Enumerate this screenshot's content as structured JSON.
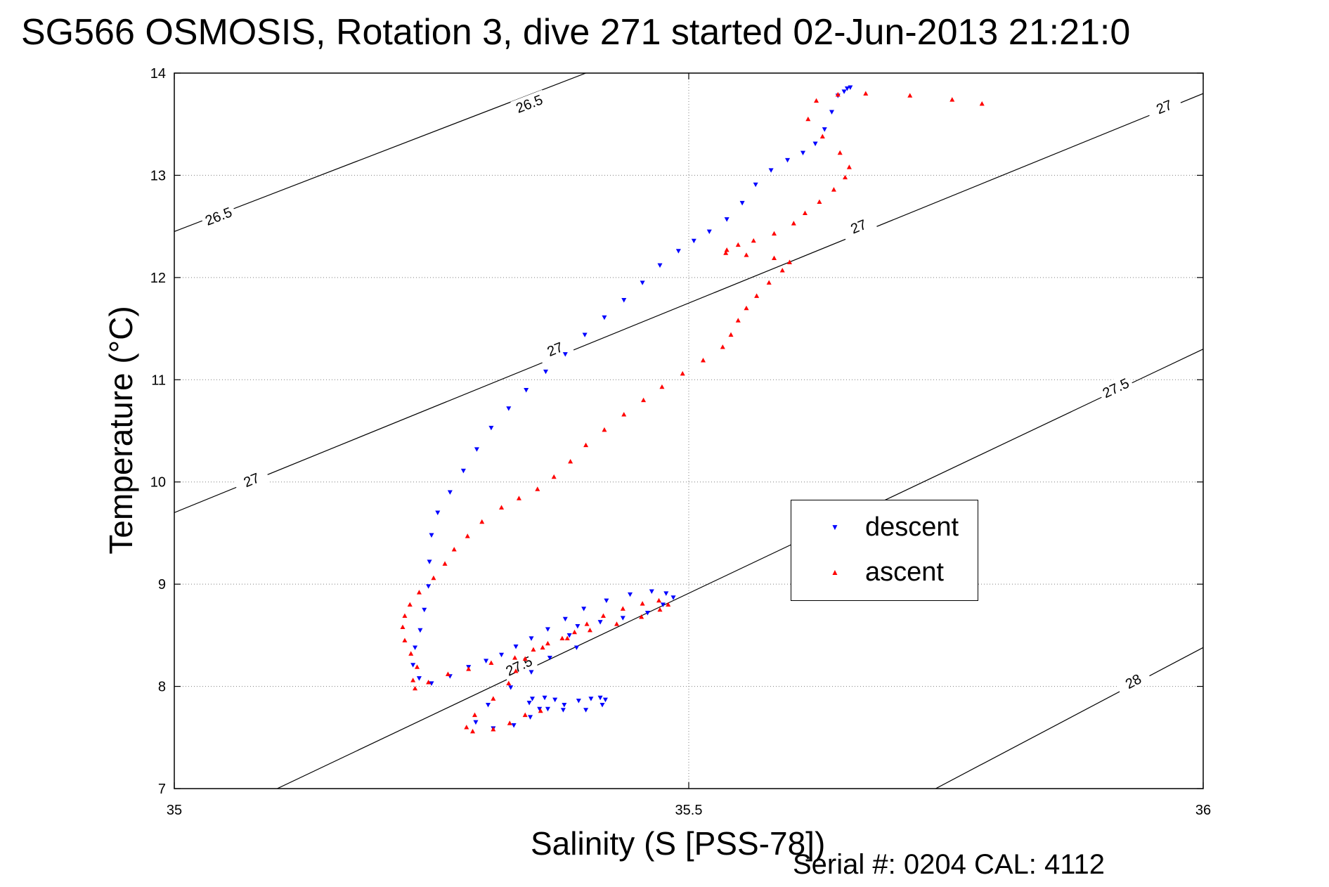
{
  "title": "SG566 OSMOSIS, Rotation 3, dive 271 started 02-Jun-2013 21:21:0",
  "footer": {
    "serial": "Serial #: 0204  CAL: 4112"
  },
  "colors": {
    "descent": "#0000ff",
    "ascent": "#ff0000",
    "axis": "#000000",
    "grid": "#7f7f7f"
  },
  "chart_data": {
    "type": "scatter",
    "title": "SG566 OSMOSIS, Rotation 3, dive 271 started 02-Jun-2013 21:21:0",
    "xlabel": "Salinity (S [PSS-78])",
    "ylabel": "Temperature (°C)",
    "xlim": [
      35,
      36
    ],
    "ylim": [
      7,
      14
    ],
    "xticks": [
      35,
      35.5,
      36
    ],
    "xtick_labels": [
      "35",
      "35.5",
      "36"
    ],
    "yticks": [
      7,
      8,
      9,
      10,
      11,
      12,
      13,
      14
    ],
    "ytick_labels": [
      "7",
      "8",
      "9",
      "10",
      "11",
      "12",
      "13",
      "14"
    ],
    "grid": true,
    "legend_position": "center-right",
    "series": [
      {
        "name": "descent",
        "marker": "triangle-down",
        "color": "#0000ff",
        "x": [
          35.654,
          35.657,
          35.651,
          35.645,
          35.639,
          35.632,
          35.623,
          35.611,
          35.596,
          35.58,
          35.565,
          35.552,
          35.537,
          35.52,
          35.505,
          35.49,
          35.472,
          35.455,
          35.437,
          35.418,
          35.399,
          35.38,
          35.361,
          35.342,
          35.325,
          35.308,
          35.294,
          35.281,
          35.268,
          35.256,
          35.25,
          35.248,
          35.247,
          35.243,
          35.239,
          35.234,
          35.232,
          35.238,
          35.25,
          35.268,
          35.286,
          35.303,
          35.318,
          35.332,
          35.347,
          35.363,
          35.38,
          35.398,
          35.42,
          35.443,
          35.464,
          35.478,
          35.485,
          35.475,
          35.46,
          35.436,
          35.414,
          35.392,
          35.384,
          35.391,
          35.365,
          35.347,
          35.327,
          35.305,
          35.293,
          35.31,
          35.33,
          35.346,
          35.363,
          35.379,
          35.393,
          35.405,
          35.414,
          35.419,
          35.416,
          35.4,
          35.378,
          35.355,
          35.345,
          35.348,
          35.36,
          35.37
        ],
        "y": [
          13.85,
          13.86,
          13.82,
          13.78,
          13.62,
          13.45,
          13.31,
          13.22,
          13.15,
          13.05,
          12.91,
          12.73,
          12.57,
          12.45,
          12.36,
          12.26,
          12.12,
          11.95,
          11.78,
          11.61,
          11.44,
          11.25,
          11.08,
          10.9,
          10.72,
          10.53,
          10.32,
          10.11,
          9.9,
          9.7,
          9.48,
          9.22,
          8.98,
          8.75,
          8.55,
          8.38,
          8.21,
          8.08,
          8.03,
          8.1,
          8.19,
          8.25,
          8.31,
          8.39,
          8.47,
          8.56,
          8.66,
          8.76,
          8.84,
          8.9,
          8.93,
          8.91,
          8.87,
          8.8,
          8.72,
          8.67,
          8.63,
          8.59,
          8.5,
          8.38,
          8.28,
          8.14,
          7.99,
          7.82,
          7.65,
          7.59,
          7.62,
          7.7,
          7.78,
          7.82,
          7.86,
          7.88,
          7.89,
          7.87,
          7.82,
          7.77,
          7.77,
          7.78,
          7.84,
          7.88,
          7.89,
          7.87
        ]
      },
      {
        "name": "ascent",
        "marker": "triangle-up",
        "color": "#ff0000",
        "x": [
          35.785,
          35.756,
          35.715,
          35.672,
          35.645,
          35.624,
          35.616,
          35.63,
          35.647,
          35.656,
          35.652,
          35.641,
          35.627,
          35.613,
          35.602,
          35.583,
          35.563,
          35.548,
          35.537,
          35.536,
          35.556,
          35.583,
          35.598,
          35.591,
          35.578,
          35.566,
          35.556,
          35.548,
          35.541,
          35.533,
          35.514,
          35.494,
          35.474,
          35.456,
          35.437,
          35.418,
          35.4,
          35.385,
          35.369,
          35.353,
          35.335,
          35.318,
          35.299,
          35.285,
          35.272,
          35.263,
          35.252,
          35.238,
          35.229,
          35.224,
          35.222,
          35.224,
          35.23,
          35.236,
          35.232,
          35.234,
          35.247,
          35.266,
          35.286,
          35.308,
          35.331,
          35.349,
          35.363,
          35.377,
          35.389,
          35.401,
          35.417,
          35.436,
          35.455,
          35.471,
          35.48,
          35.472,
          35.454,
          35.43,
          35.404,
          35.382,
          35.358,
          35.341,
          35.332,
          35.325,
          35.31,
          35.292,
          35.284,
          35.29,
          35.31,
          35.326,
          35.341,
          35.356
        ],
        "y": [
          13.7,
          13.74,
          13.78,
          13.8,
          13.79,
          13.73,
          13.55,
          13.38,
          13.22,
          13.08,
          12.98,
          12.86,
          12.74,
          12.63,
          12.53,
          12.43,
          12.36,
          12.32,
          12.27,
          12.24,
          12.22,
          12.19,
          12.15,
          12.07,
          11.95,
          11.82,
          11.7,
          11.58,
          11.44,
          11.32,
          11.19,
          11.06,
          10.93,
          10.8,
          10.66,
          10.51,
          10.36,
          10.2,
          10.05,
          9.93,
          9.84,
          9.75,
          9.61,
          9.47,
          9.34,
          9.2,
          9.06,
          8.92,
          8.8,
          8.69,
          8.58,
          8.45,
          8.32,
          8.19,
          8.06,
          7.98,
          8.04,
          8.12,
          8.17,
          8.23,
          8.28,
          8.36,
          8.42,
          8.47,
          8.53,
          8.61,
          8.69,
          8.76,
          8.81,
          8.84,
          8.8,
          8.75,
          8.68,
          8.61,
          8.55,
          8.47,
          8.38,
          8.27,
          8.15,
          8.03,
          7.88,
          7.72,
          7.6,
          7.56,
          7.58,
          7.64,
          7.72,
          7.76
        ]
      }
    ],
    "contours": [
      {
        "level": "26.5",
        "x0": 35,
        "y0": 12.45,
        "x1": 35.4,
        "y1": 14.0,
        "labels": [
          {
            "text": "26.5",
            "x": 35.043,
            "y": 12.6
          },
          {
            "text": "26.5",
            "x": 35.345,
            "y": 13.7
          }
        ]
      },
      {
        "level": "27",
        "x0": 35,
        "y0": 9.7,
        "x1": 36,
        "y1": 13.8,
        "labels": [
          {
            "text": "27",
            "x": 35.075,
            "y": 10.02
          },
          {
            "text": "27",
            "x": 35.37,
            "y": 11.3
          },
          {
            "text": "27",
            "x": 35.665,
            "y": 12.5
          },
          {
            "text": "27",
            "x": 35.962,
            "y": 13.67
          }
        ]
      },
      {
        "level": "27.5",
        "x0": 35.1,
        "y0": 7.0,
        "x1": 36,
        "y1": 11.3,
        "labels": [
          {
            "text": "27.5",
            "x": 35.335,
            "y": 8.2
          },
          {
            "text": "27.5",
            "x": 35.915,
            "y": 10.92
          }
        ]
      },
      {
        "level": "28",
        "x0": 35.74,
        "y0": 7.0,
        "x1": 36,
        "y1": 8.38,
        "labels": [
          {
            "text": "28",
            "x": 35.932,
            "y": 8.05
          }
        ]
      }
    ]
  }
}
